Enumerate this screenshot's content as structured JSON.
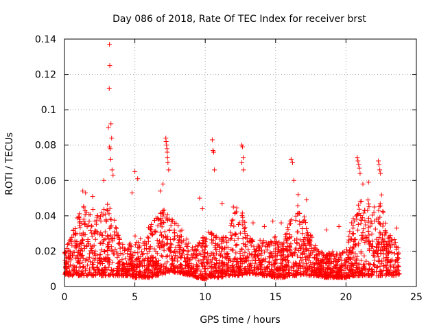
{
  "chart_data": {
    "type": "scatter",
    "title": "Day 086 of 2018, Rate Of TEC Index for receiver brst",
    "xlabel": "GPS time / hours",
    "ylabel": "ROTI / TECUs",
    "xlim": [
      0,
      25
    ],
    "ylim": [
      0,
      0.14
    ],
    "x_ticks": [
      0,
      5,
      10,
      15,
      20,
      25
    ],
    "x_tick_labels": [
      "0",
      "5",
      "10",
      "15",
      "20",
      "25"
    ],
    "y_ticks": [
      0,
      0.02,
      0.04,
      0.06,
      0.08,
      0.1,
      0.12,
      0.14
    ],
    "y_tick_labels": [
      "0",
      "0.02",
      "0.04",
      "0.06",
      "0.08",
      "0.1",
      "0.12",
      "0.14"
    ],
    "grid": true,
    "marker": "+",
    "series": [
      {
        "name": "ROTI",
        "color": "#ff0000",
        "x": [
          3.2,
          3.22,
          3.18,
          3.3,
          3.12,
          3.35,
          3.2,
          3.25,
          3.28,
          3.38,
          3.45,
          7.2,
          7.22,
          7.25,
          7.28,
          7.3,
          7.32,
          7.35,
          7.4,
          10.5,
          10.55,
          10.6,
          10.65,
          12.6,
          12.65,
          12.7,
          12.6,
          12.72,
          16.1,
          16.2,
          16.3,
          20.8,
          20.85,
          20.9,
          20.95,
          21.0,
          22.3,
          22.35,
          22.4,
          22.45,
          1.3,
          1.5,
          2.0,
          2.8,
          4.8,
          5.0,
          5.2,
          6.8,
          7.0,
          9.6,
          9.8,
          11.2,
          12.0,
          13.4,
          14.2,
          14.8,
          15.4,
          16.6,
          17.2,
          18.6,
          19.5,
          21.2,
          21.6,
          22.0,
          23.6
        ],
        "y": [
          0.137,
          0.125,
          0.112,
          0.092,
          0.09,
          0.084,
          0.079,
          0.078,
          0.072,
          0.066,
          0.063,
          0.084,
          0.082,
          0.08,
          0.078,
          0.076,
          0.073,
          0.07,
          0.066,
          0.083,
          0.077,
          0.076,
          0.066,
          0.08,
          0.079,
          0.073,
          0.07,
          0.066,
          0.072,
          0.07,
          0.06,
          0.073,
          0.071,
          0.069,
          0.067,
          0.064,
          0.071,
          0.069,
          0.066,
          0.064,
          0.054,
          0.053,
          0.051,
          0.06,
          0.053,
          0.065,
          0.061,
          0.054,
          0.058,
          0.05,
          0.044,
          0.047,
          0.045,
          0.036,
          0.034,
          0.037,
          0.036,
          0.052,
          0.049,
          0.032,
          0.034,
          0.058,
          0.059,
          0.045,
          0.033
        ],
        "dense_band": {
          "note": "Dense cloud of points between these bounds over the whole day",
          "x": [
            0.0,
            0.5,
            1.0,
            1.5,
            2.0,
            2.5,
            3.0,
            3.5,
            4.0,
            4.5,
            5.0,
            5.5,
            6.0,
            6.5,
            7.0,
            7.5,
            8.0,
            8.5,
            9.0,
            9.5,
            10.0,
            10.5,
            11.0,
            11.5,
            12.0,
            12.5,
            13.0,
            13.5,
            14.0,
            14.5,
            15.0,
            15.5,
            16.0,
            16.5,
            17.0,
            17.5,
            18.0,
            18.5,
            19.0,
            19.5,
            20.0,
            20.5,
            21.0,
            21.5,
            22.0,
            22.5,
            23.0,
            23.5,
            23.8
          ],
          "lower": [
            0.007,
            0.006,
            0.006,
            0.006,
            0.006,
            0.006,
            0.006,
            0.006,
            0.006,
            0.006,
            0.005,
            0.005,
            0.005,
            0.006,
            0.007,
            0.008,
            0.008,
            0.007,
            0.006,
            0.005,
            0.004,
            0.005,
            0.005,
            0.006,
            0.006,
            0.006,
            0.007,
            0.007,
            0.006,
            0.006,
            0.005,
            0.005,
            0.006,
            0.006,
            0.007,
            0.006,
            0.006,
            0.005,
            0.005,
            0.005,
            0.005,
            0.006,
            0.006,
            0.006,
            0.006,
            0.006,
            0.006,
            0.006,
            0.007
          ],
          "upper": [
            0.02,
            0.03,
            0.042,
            0.048,
            0.045,
            0.04,
            0.052,
            0.04,
            0.025,
            0.022,
            0.03,
            0.028,
            0.034,
            0.04,
            0.045,
            0.04,
            0.038,
            0.03,
            0.022,
            0.025,
            0.03,
            0.032,
            0.03,
            0.028,
            0.04,
            0.05,
            0.03,
            0.026,
            0.028,
            0.025,
            0.03,
            0.025,
            0.04,
            0.048,
            0.04,
            0.03,
            0.022,
            0.018,
            0.02,
            0.018,
            0.022,
            0.04,
            0.048,
            0.05,
            0.045,
            0.055,
            0.03,
            0.028,
            0.02
          ]
        }
      }
    ]
  }
}
